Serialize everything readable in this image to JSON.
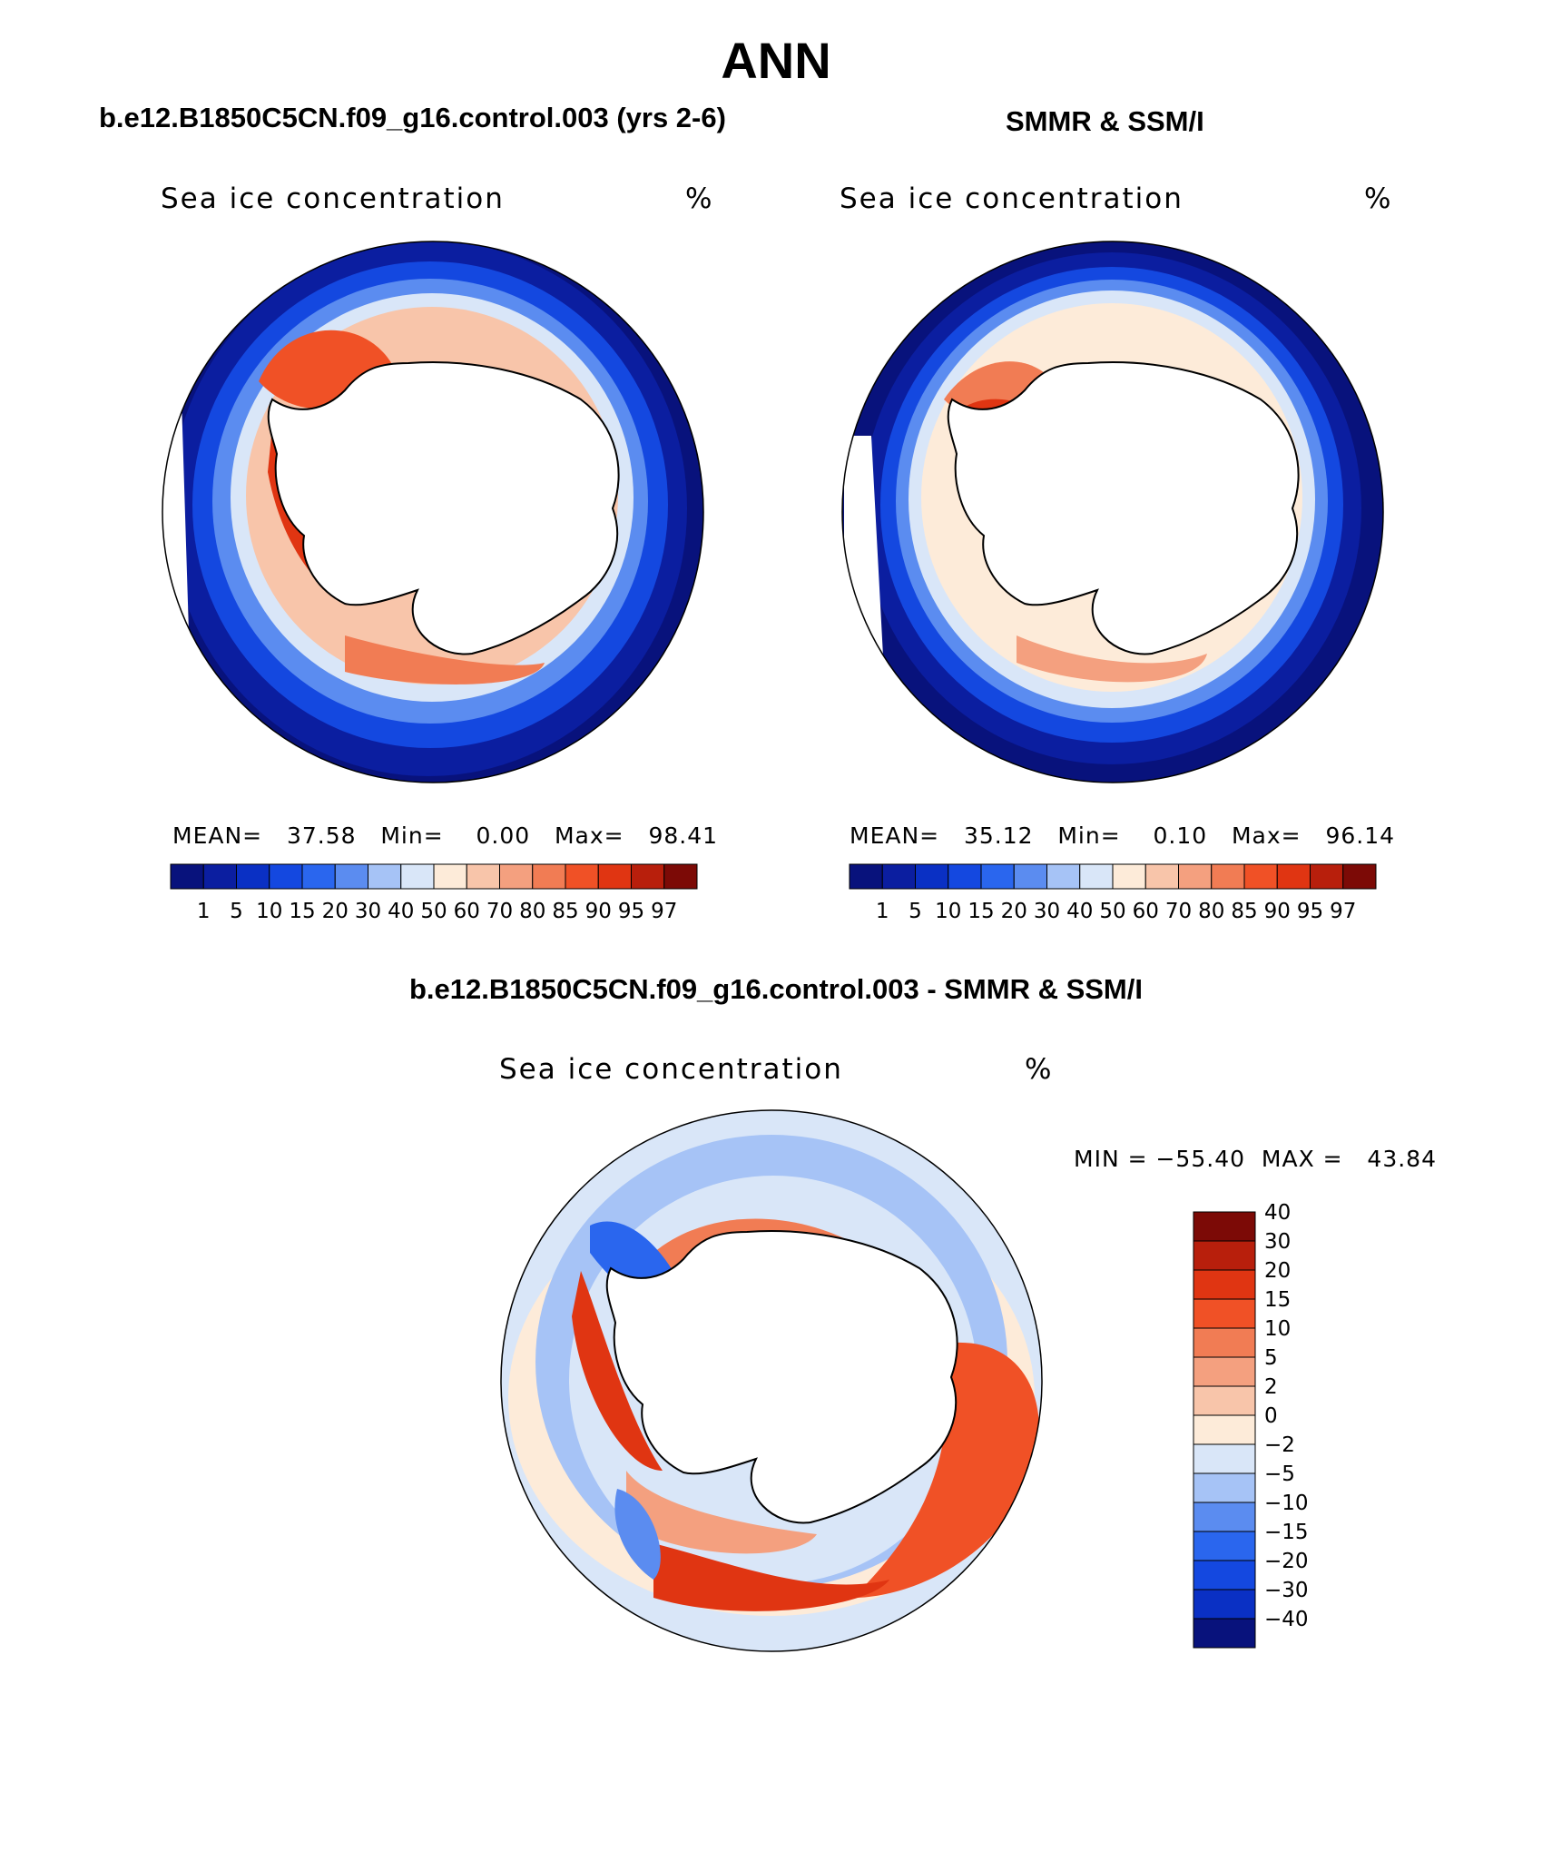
{
  "header": {
    "main_title": "ANN",
    "model_case": "b.e12.B1850C5CN.f09_g16.control.003 (yrs 2-6)",
    "obs_case": "SMMR & SSM/I",
    "diff_case": "b.e12.B1850C5CN.f09_g16.control.003 - SMMR & SSM/I"
  },
  "panels": {
    "model": {
      "variable": "Sea ice concentration",
      "unit": "%",
      "stats_line": "MEAN=   37.58   Min=    0.00   Max=   98.41"
    },
    "obs": {
      "variable": "Sea ice concentration",
      "unit": "%",
      "stats_line": "MEAN=   35.12   Min=    0.10   Max=   96.14"
    },
    "diff": {
      "variable": "Sea ice concentration",
      "unit": "%",
      "minmax_line": "MIN = −55.40  MAX =   43.84"
    }
  },
  "colors": {
    "seq": [
      "#08127c",
      "#0b1ea0",
      "#0a30c4",
      "#1448e0",
      "#2a66ee",
      "#5b8cf0",
      "#a6c3f6",
      "#d9e6f8",
      "#fdebd9",
      "#f8c5aa",
      "#f4a07f",
      "#f17c54",
      "#f05126",
      "#e03512",
      "#b81f0c",
      "#7c0a06"
    ],
    "div": [
      "#08127c",
      "#0a30c4",
      "#1448e0",
      "#2a66ee",
      "#5b8cf0",
      "#a6c3f6",
      "#d9e6f8",
      "#fdebd9",
      "#f8c5aa",
      "#f4a07f",
      "#f17c54",
      "#f05126",
      "#e03512",
      "#b81f0c",
      "#7c0a06"
    ],
    "land": "#ffffff",
    "coast": "#000000"
  },
  "chart_data": [
    {
      "type": "heatmap",
      "title": "Sea ice concentration",
      "projection": "south polar stereographic",
      "units": "%",
      "mean": 37.58,
      "min": 0.0,
      "max": 98.41,
      "levels": [
        "1",
        "5",
        "10",
        "15",
        "20",
        "30",
        "40",
        "50",
        "60",
        "70",
        "80",
        "85",
        "90",
        "95",
        "97"
      ]
    },
    {
      "type": "heatmap",
      "title": "Sea ice concentration",
      "projection": "south polar stereographic",
      "units": "%",
      "mean": 35.12,
      "min": 0.1,
      "max": 96.14,
      "levels": [
        "1",
        "5",
        "10",
        "15",
        "20",
        "30",
        "40",
        "50",
        "60",
        "70",
        "80",
        "85",
        "90",
        "95",
        "97"
      ]
    },
    {
      "type": "heatmap",
      "title": "Sea ice concentration",
      "projection": "south polar stereographic",
      "units": "%",
      "min": -55.4,
      "max": 43.84,
      "levels": [
        "−40",
        "−30",
        "−20",
        "−15",
        "−10",
        "−5",
        "−2",
        "0",
        "2",
        "5",
        "10",
        "15",
        "20",
        "30",
        "40"
      ]
    }
  ]
}
